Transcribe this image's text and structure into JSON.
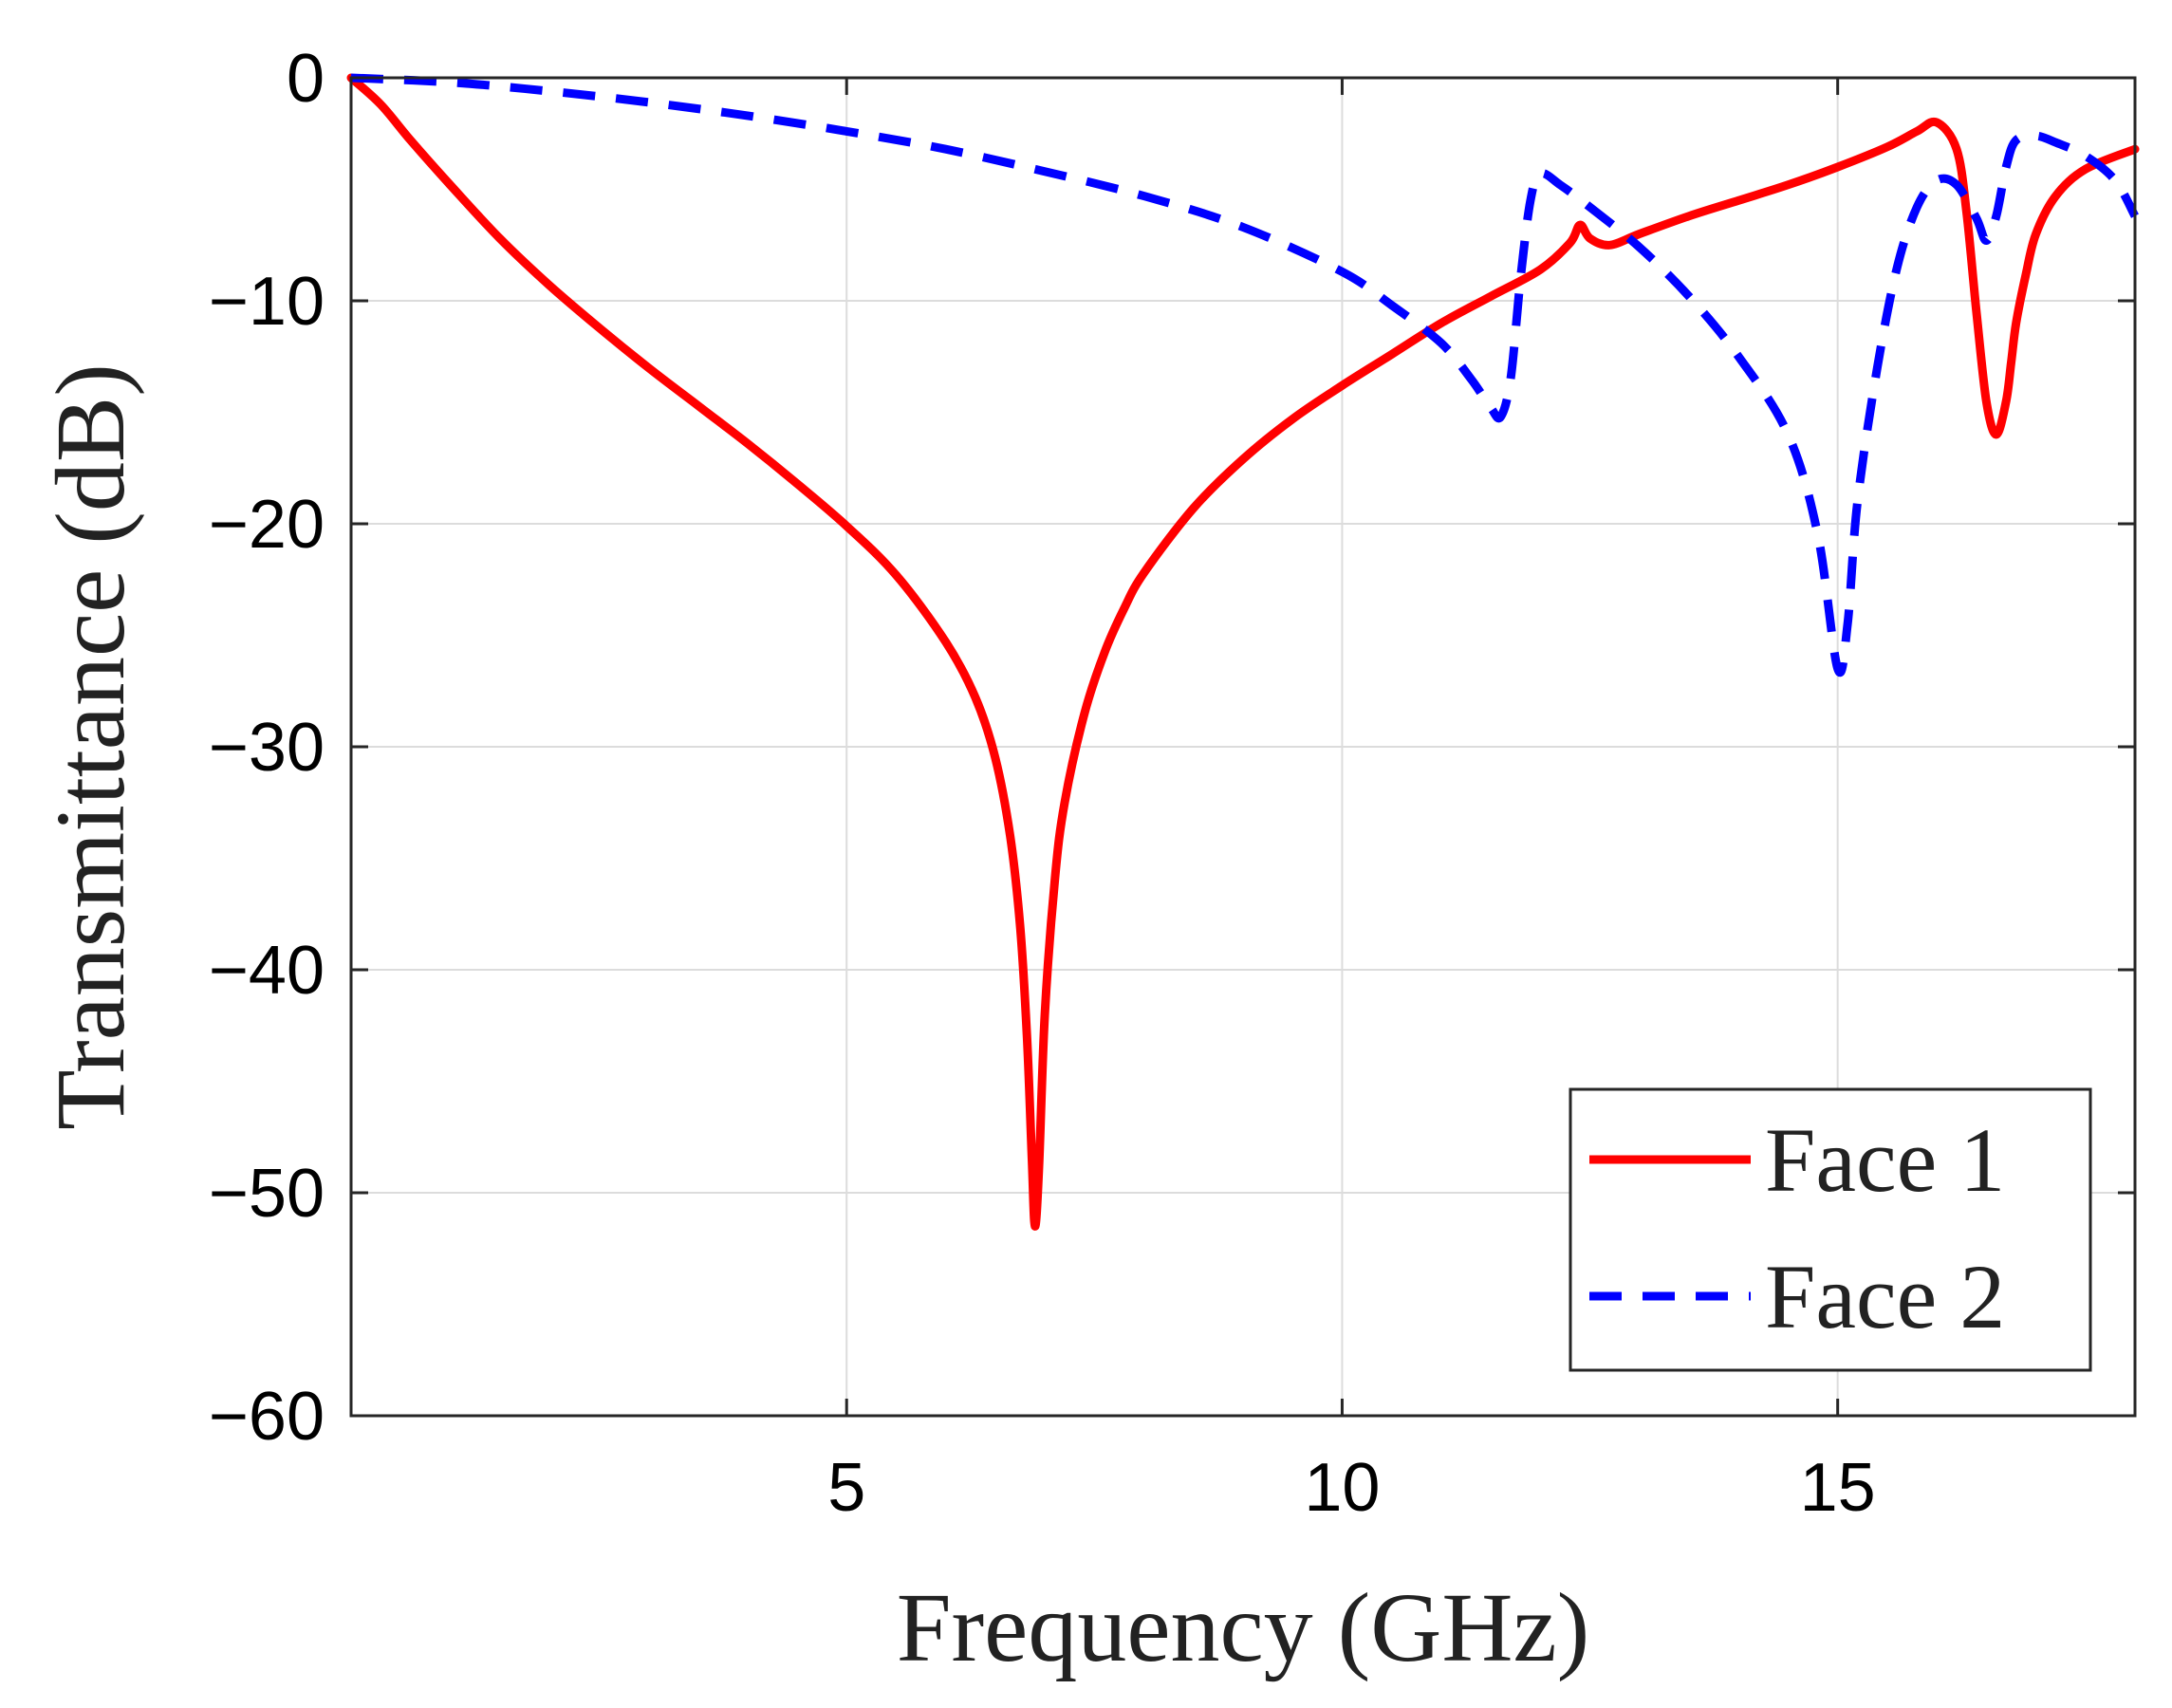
{
  "chart_data": {
    "type": "line",
    "title": "",
    "xlabel": "Frequency (GHz)",
    "ylabel": "Transmittance (dB)",
    "xlim": [
      0,
      18
    ],
    "ylim": [
      -60,
      0
    ],
    "xticks": [
      5,
      10,
      15
    ],
    "xtick_labels": [
      "5",
      "10",
      "15"
    ],
    "yticks": [
      0,
      -10,
      -20,
      -30,
      -40,
      -50,
      -60
    ],
    "ytick_labels": [
      "0",
      "−10",
      "−20",
      "−30",
      "−40",
      "−50",
      "−60"
    ],
    "grid": true,
    "legend_position": "bottom-right",
    "series": [
      {
        "name": "Face 1",
        "color": "#ff0000",
        "style": "solid",
        "x": [
          0,
          0.3,
          0.6,
          1.0,
          1.5,
          2.0,
          2.5,
          3.0,
          3.5,
          4.0,
          4.5,
          5.0,
          5.5,
          6.0,
          6.3,
          6.5,
          6.65,
          6.75,
          6.82,
          6.87,
          6.9,
          6.94,
          7.0,
          7.1,
          7.2,
          7.4,
          7.6,
          7.8,
          8.0,
          8.5,
          9.0,
          9.5,
          10.0,
          10.5,
          11.0,
          11.5,
          12.0,
          12.3,
          12.4,
          12.5,
          12.7,
          13.0,
          13.5,
          14.0,
          14.5,
          15.0,
          15.5,
          15.8,
          16.0,
          16.2,
          16.3,
          16.4,
          16.5,
          16.6,
          16.7,
          16.75,
          16.8,
          16.9,
          17.0,
          17.2,
          17.5,
          18.0
        ],
        "y": [
          0,
          -1.2,
          -2.8,
          -4.8,
          -7.2,
          -9.3,
          -11.2,
          -13.0,
          -14.7,
          -16.4,
          -18.2,
          -20.1,
          -22.3,
          -25.3,
          -27.8,
          -30.5,
          -34.0,
          -38.0,
          -43.0,
          -48.5,
          -51.5,
          -49.0,
          -42.0,
          -36.0,
          -32.5,
          -28.5,
          -25.8,
          -23.8,
          -22.2,
          -19.3,
          -17.1,
          -15.3,
          -13.8,
          -12.4,
          -11.0,
          -9.8,
          -8.6,
          -7.4,
          -6.6,
          -7.2,
          -7.5,
          -7.0,
          -6.2,
          -5.5,
          -4.8,
          -4.0,
          -3.1,
          -2.4,
          -2.0,
          -3.2,
          -6.0,
          -10.5,
          -14.5,
          -16.0,
          -14.5,
          -12.8,
          -11.0,
          -8.8,
          -7.0,
          -5.3,
          -4.1,
          -3.2
        ]
      },
      {
        "name": "Face 2",
        "color": "#0000ff",
        "style": "dashed",
        "x": [
          0,
          1.0,
          2.0,
          3.0,
          4.0,
          5.0,
          6.0,
          7.0,
          8.0,
          9.0,
          10.0,
          10.5,
          11.0,
          11.3,
          11.5,
          11.6,
          11.7,
          11.8,
          11.9,
          12.0,
          12.2,
          12.5,
          13.0,
          13.5,
          14.0,
          14.5,
          14.8,
          15.0,
          15.1,
          15.2,
          15.4,
          15.6,
          15.8,
          16.0,
          16.2,
          16.4,
          16.5,
          16.6,
          16.7,
          16.8,
          17.0,
          17.2,
          17.5,
          17.8,
          18.0
        ],
        "y": [
          0,
          -0.2,
          -0.6,
          -1.1,
          -1.7,
          -2.4,
          -3.2,
          -4.2,
          -5.3,
          -6.7,
          -8.7,
          -10.2,
          -11.9,
          -13.5,
          -14.8,
          -15.2,
          -13.5,
          -9.0,
          -5.5,
          -4.3,
          -4.8,
          -5.8,
          -7.6,
          -9.8,
          -12.5,
          -16.0,
          -20.5,
          -26.5,
          -24.5,
          -19.0,
          -13.0,
          -8.5,
          -5.8,
          -4.6,
          -4.8,
          -6.3,
          -7.3,
          -6.2,
          -4.0,
          -2.8,
          -2.6,
          -2.9,
          -3.5,
          -4.6,
          -6.2
        ]
      }
    ]
  }
}
